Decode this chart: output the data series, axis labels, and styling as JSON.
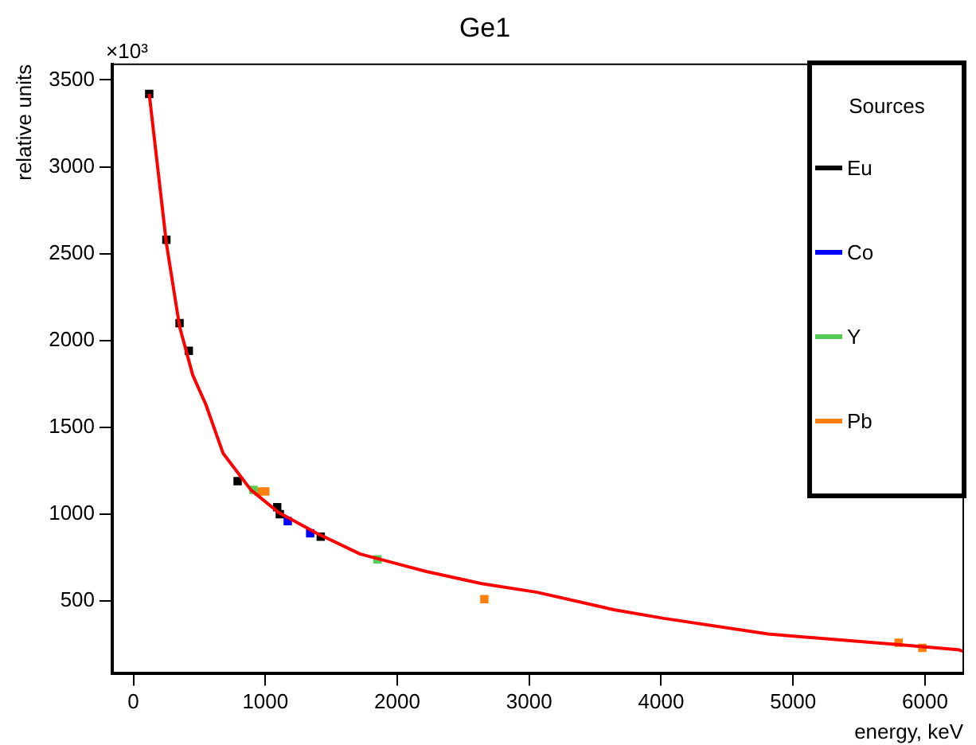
{
  "chart_data": {
    "type": "scatter",
    "title": "Ge1",
    "xlabel": "energy, keV",
    "ylabel": "relative units",
    "legend_title": "Sources",
    "annotations": [
      "×10³"
    ],
    "xlim": [
      -160,
      6290
    ],
    "ylim": [
      85,
      3590
    ],
    "xticks": [
      0,
      1000,
      2000,
      3000,
      4000,
      5000,
      6000
    ],
    "yticks": [
      500,
      1000,
      1500,
      2000,
      2500,
      3000,
      3500
    ],
    "grid": false,
    "legend": "top right",
    "marker": "square",
    "series": [
      {
        "type": "line",
        "marker": "none",
        "color": "#ff0000",
        "x": [
          120,
          250,
          350,
          450,
          550,
          680,
          890,
          1100,
          1390,
          1720,
          2220,
          2640,
          3060,
          3640,
          4020,
          4810,
          5770,
          6250,
          6290
        ],
        "values": [
          3420,
          2560,
          2080,
          1800,
          1630,
          1350,
          1140,
          1010,
          890,
          770,
          670,
          600,
          550,
          450,
          400,
          310,
          250,
          220,
          210
        ]
      },
      {
        "name": "Eu",
        "color": "#000000",
        "x": [
          120,
          250,
          350,
          420,
          790,
          1090,
          1110,
          1420
        ],
        "values": [
          3420,
          2580,
          2100,
          1940,
          1190,
          1040,
          1000,
          870
        ]
      },
      {
        "name": "Co",
        "color": "#0000ff",
        "x": [
          1170,
          1340
        ],
        "values": [
          960,
          890
        ]
      },
      {
        "name": "Y",
        "color": "#55cc55",
        "x": [
          910,
          1850
        ],
        "values": [
          1140,
          740
        ]
      },
      {
        "name": "Pb",
        "color": "#ff7f0e",
        "x": [
          950,
          1000,
          2660,
          5800,
          5980
        ],
        "values": [
          1130,
          1130,
          510,
          260,
          230
        ]
      }
    ]
  }
}
